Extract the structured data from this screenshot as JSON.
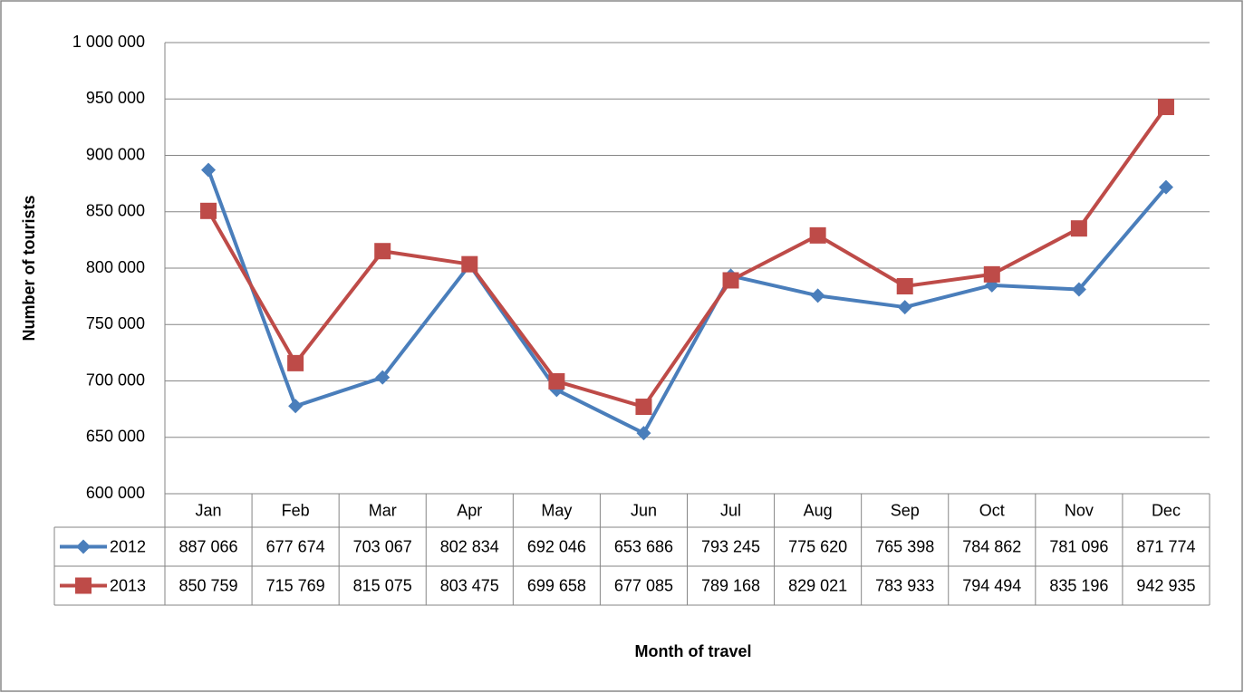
{
  "chart_data": {
    "type": "line",
    "categories": [
      "Jan",
      "Feb",
      "Mar",
      "Apr",
      "May",
      "Jun",
      "Jul",
      "Aug",
      "Sep",
      "Oct",
      "Nov",
      "Dec"
    ],
    "series": [
      {
        "name": "2012",
        "color": "#4a7ebb",
        "marker": "diamond",
        "values": [
          887066,
          677674,
          703067,
          802834,
          692046,
          653686,
          793245,
          775620,
          765398,
          784862,
          781096,
          871774
        ],
        "value_labels": [
          "887 066",
          "677 674",
          "703 067",
          "802 834",
          "692 046",
          "653 686",
          "793 245",
          "775 620",
          "765 398",
          "784 862",
          "781 096",
          "871 774"
        ]
      },
      {
        "name": "2013",
        "color": "#be4b48",
        "marker": "square",
        "values": [
          850759,
          715769,
          815075,
          803475,
          699658,
          677085,
          789168,
          829021,
          783933,
          794494,
          835196,
          942935
        ],
        "value_labels": [
          "850 759",
          "715 769",
          "815 075",
          "803 475",
          "699 658",
          "677 085",
          "789 168",
          "829 021",
          "783 933",
          "794 494",
          "835 196",
          "942 935"
        ]
      }
    ],
    "ylim": [
      600000,
      1000000
    ],
    "yticks": [
      {
        "value": 600000,
        "label": "600 000"
      },
      {
        "value": 650000,
        "label": "650 000"
      },
      {
        "value": 700000,
        "label": "700 000"
      },
      {
        "value": 750000,
        "label": "750 000"
      },
      {
        "value": 800000,
        "label": "800 000"
      },
      {
        "value": 850000,
        "label": "850 000"
      },
      {
        "value": 900000,
        "label": "900 000"
      },
      {
        "value": 950000,
        "label": "950 000"
      },
      {
        "value": 1000000,
        "label": "1 000 000"
      }
    ],
    "grid": true,
    "xlabel": "Month of travel",
    "ylabel": "Number of tourists"
  }
}
